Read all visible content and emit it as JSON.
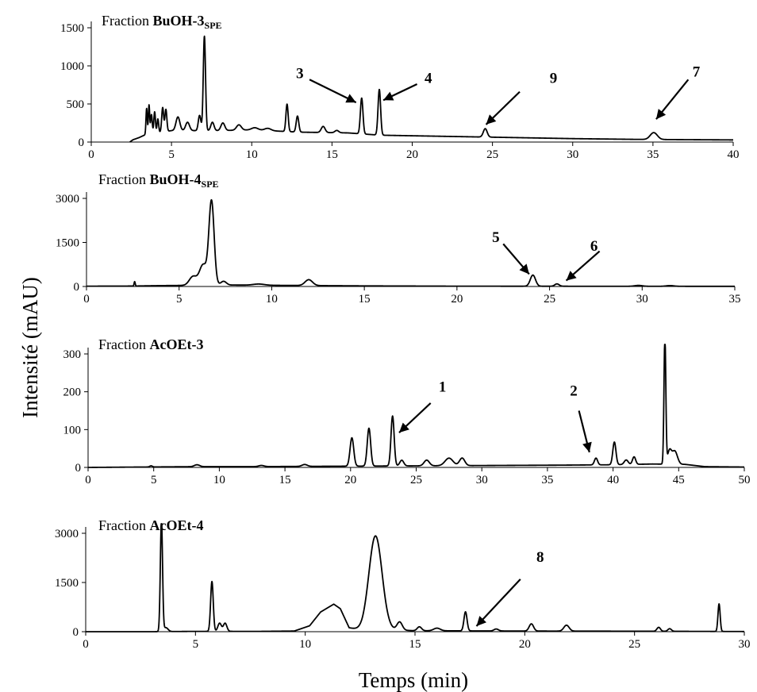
{
  "figure": {
    "ylabel": "Intensité (mAU)",
    "xlabel": "Temps (min)"
  },
  "chart_data": [
    {
      "type": "line",
      "title_prefix": "Fraction ",
      "title_bold": "BuOH-3",
      "title_sub": "SPE",
      "xlim": [
        0,
        40
      ],
      "xticks": [
        0,
        5,
        10,
        15,
        20,
        25,
        30,
        35,
        40
      ],
      "ylim": [
        0,
        1500
      ],
      "yticks": [
        0,
        500,
        1000,
        1500
      ],
      "baseline": [
        [
          2.4,
          0
        ],
        [
          2.6,
          30
        ],
        [
          3.0,
          60
        ],
        [
          3.4,
          100
        ],
        [
          5,
          150
        ],
        [
          8,
          150
        ],
        [
          10,
          160
        ],
        [
          13,
          130
        ],
        [
          16,
          120
        ],
        [
          18,
          90
        ],
        [
          22,
          75
        ],
        [
          26,
          60
        ],
        [
          30,
          45
        ],
        [
          34,
          35
        ],
        [
          40,
          28
        ]
      ],
      "peaks": [
        [
          3.45,
          340,
          0.04
        ],
        [
          3.6,
          380,
          0.04
        ],
        [
          3.75,
          250,
          0.05
        ],
        [
          3.95,
          280,
          0.05
        ],
        [
          4.15,
          180,
          0.05
        ],
        [
          4.45,
          320,
          0.06
        ],
        [
          4.65,
          290,
          0.06
        ],
        [
          5.4,
          180,
          0.12
        ],
        [
          6.0,
          110,
          0.12
        ],
        [
          6.75,
          200,
          0.08
        ],
        [
          7.05,
          1240,
          0.07
        ],
        [
          7.55,
          110,
          0.1
        ],
        [
          8.2,
          100,
          0.12
        ],
        [
          9.2,
          70,
          0.15
        ],
        [
          10.2,
          30,
          0.2
        ],
        [
          11.0,
          30,
          0.2
        ],
        [
          12.2,
          360,
          0.07
        ],
        [
          12.85,
          210,
          0.08
        ],
        [
          14.45,
          80,
          0.12
        ],
        [
          15.3,
          30,
          0.12
        ],
        [
          16.85,
          470,
          0.08
        ],
        [
          17.95,
          600,
          0.08
        ],
        [
          24.55,
          110,
          0.12
        ],
        [
          35.05,
          90,
          0.22
        ]
      ],
      "annotations": [
        {
          "label": "3",
          "x": 16.5,
          "y": 520,
          "text_x": 13.0,
          "text_y": 910,
          "arrow_from_x": 13.6,
          "arrow_from_y": 820
        },
        {
          "label": "4",
          "x": 18.2,
          "y": 550,
          "text_x": 21.0,
          "text_y": 850,
          "arrow_from_x": 20.3,
          "arrow_from_y": 760
        },
        {
          "label": "9",
          "x": 24.6,
          "y": 230,
          "text_x": 28.8,
          "text_y": 850,
          "arrow_from_x": 26.7,
          "arrow_from_y": 660
        },
        {
          "label": "7",
          "x": 35.2,
          "y": 300,
          "text_x": 37.7,
          "text_y": 930,
          "arrow_from_x": 37.2,
          "arrow_from_y": 820
        }
      ]
    },
    {
      "type": "line",
      "title_prefix": "Fraction ",
      "title_bold": "BuOH-4",
      "title_sub": "SPE",
      "xlim": [
        0,
        35
      ],
      "xticks": [
        0,
        5,
        10,
        15,
        20,
        25,
        30,
        35
      ],
      "ylim": [
        0,
        3000
      ],
      "yticks": [
        0,
        1500,
        3000
      ],
      "baseline": [
        [
          0,
          10
        ],
        [
          2.5,
          15
        ],
        [
          4,
          30
        ],
        [
          8,
          50
        ],
        [
          10,
          40
        ],
        [
          15,
          20
        ],
        [
          20,
          10
        ],
        [
          25,
          8
        ],
        [
          35,
          5
        ]
      ],
      "peaks": [
        [
          2.6,
          150,
          0.03
        ],
        [
          5.75,
          300,
          0.2
        ],
        [
          6.3,
          700,
          0.2
        ],
        [
          6.75,
          2850,
          0.14
        ],
        [
          7.4,
          130,
          0.15
        ],
        [
          9.3,
          40,
          0.3
        ],
        [
          12.0,
          200,
          0.2
        ],
        [
          24.1,
          380,
          0.14
        ],
        [
          25.4,
          80,
          0.12
        ],
        [
          29.8,
          30,
          0.2
        ],
        [
          31.5,
          25,
          0.2
        ]
      ],
      "annotations": [
        {
          "label": "5",
          "x": 23.9,
          "y": 420,
          "text_x": 22.1,
          "text_y": 1700,
          "arrow_from_x": 22.5,
          "arrow_from_y": 1450
        },
        {
          "label": "6",
          "x": 25.9,
          "y": 200,
          "text_x": 27.4,
          "text_y": 1400,
          "arrow_from_x": 27.7,
          "arrow_from_y": 1200
        }
      ]
    },
    {
      "type": "line",
      "title_prefix": "Fraction ",
      "title_bold": "AcOEt-3",
      "title_sub": "",
      "xlim": [
        0,
        50
      ],
      "xticks": [
        0,
        5,
        10,
        15,
        20,
        25,
        30,
        35,
        40,
        45,
        50
      ],
      "ylim": [
        0,
        300
      ],
      "yticks": [
        0,
        100,
        200,
        300
      ],
      "baseline": [
        [
          0,
          0
        ],
        [
          8,
          2
        ],
        [
          12,
          2
        ],
        [
          18,
          3
        ],
        [
          24,
          4
        ],
        [
          30,
          5
        ],
        [
          36,
          6
        ],
        [
          40,
          7
        ],
        [
          43,
          9
        ],
        [
          45.5,
          8
        ],
        [
          47,
          2
        ],
        [
          50,
          1
        ]
      ],
      "peaks": [
        [
          4.8,
          3,
          0.1
        ],
        [
          8.3,
          5,
          0.2
        ],
        [
          13.2,
          3,
          0.2
        ],
        [
          16.5,
          5,
          0.2
        ],
        [
          20.1,
          75,
          0.14
        ],
        [
          21.4,
          100,
          0.13
        ],
        [
          23.2,
          132,
          0.12
        ],
        [
          23.9,
          15,
          0.15
        ],
        [
          25.8,
          15,
          0.2
        ],
        [
          27.5,
          20,
          0.3
        ],
        [
          28.5,
          20,
          0.2
        ],
        [
          38.7,
          18,
          0.12
        ],
        [
          40.1,
          60,
          0.12
        ],
        [
          41.0,
          12,
          0.15
        ],
        [
          41.6,
          20,
          0.12
        ],
        [
          43.95,
          340,
          0.07
        ],
        [
          44.3,
          35,
          0.15
        ],
        [
          44.7,
          35,
          0.2
        ]
      ],
      "annotations": [
        {
          "label": "1",
          "x": 23.7,
          "y": 92,
          "text_x": 27.0,
          "text_y": 215,
          "arrow_from_x": 26.1,
          "arrow_from_y": 170
        },
        {
          "label": "2",
          "x": 38.2,
          "y": 40,
          "text_x": 37.0,
          "text_y": 205,
          "arrow_from_x": 37.4,
          "arrow_from_y": 150
        }
      ]
    },
    {
      "type": "line",
      "title_prefix": "Fraction ",
      "title_bold": "AcOEt-4",
      "title_sub": "",
      "xlim": [
        0,
        30
      ],
      "xticks": [
        0,
        5,
        10,
        15,
        20,
        25,
        30
      ],
      "ylim": [
        0,
        3000
      ],
      "yticks": [
        0,
        1500,
        3000
      ],
      "baseline": [
        [
          0,
          0
        ],
        [
          3,
          0
        ],
        [
          5,
          10
        ],
        [
          8,
          10
        ],
        [
          9.5,
          20
        ],
        [
          10.2,
          180
        ],
        [
          10.7,
          600
        ],
        [
          11.3,
          840
        ],
        [
          11.6,
          700
        ],
        [
          12.0,
          120
        ],
        [
          12.6,
          40
        ],
        [
          13.8,
          60
        ],
        [
          15,
          30
        ],
        [
          20,
          20
        ],
        [
          25,
          15
        ],
        [
          30,
          5
        ]
      ],
      "peaks": [
        [
          3.45,
          3380,
          0.05
        ],
        [
          3.65,
          120,
          0.1
        ],
        [
          5.75,
          1520,
          0.06
        ],
        [
          6.1,
          250,
          0.08
        ],
        [
          6.35,
          250,
          0.08
        ],
        [
          13.2,
          2870,
          0.3
        ],
        [
          14.3,
          250,
          0.12
        ],
        [
          15.2,
          120,
          0.1
        ],
        [
          16.0,
          80,
          0.15
        ],
        [
          17.3,
          580,
          0.07
        ],
        [
          18.7,
          60,
          0.1
        ],
        [
          20.3,
          220,
          0.1
        ],
        [
          21.9,
          180,
          0.12
        ],
        [
          26.1,
          120,
          0.08
        ],
        [
          26.6,
          80,
          0.08
        ],
        [
          28.85,
          840,
          0.05
        ]
      ],
      "annotations": [
        {
          "label": "8",
          "x": 17.8,
          "y": 170,
          "text_x": 20.7,
          "text_y": 2300,
          "arrow_from_x": 19.8,
          "arrow_from_y": 1600
        }
      ]
    }
  ]
}
